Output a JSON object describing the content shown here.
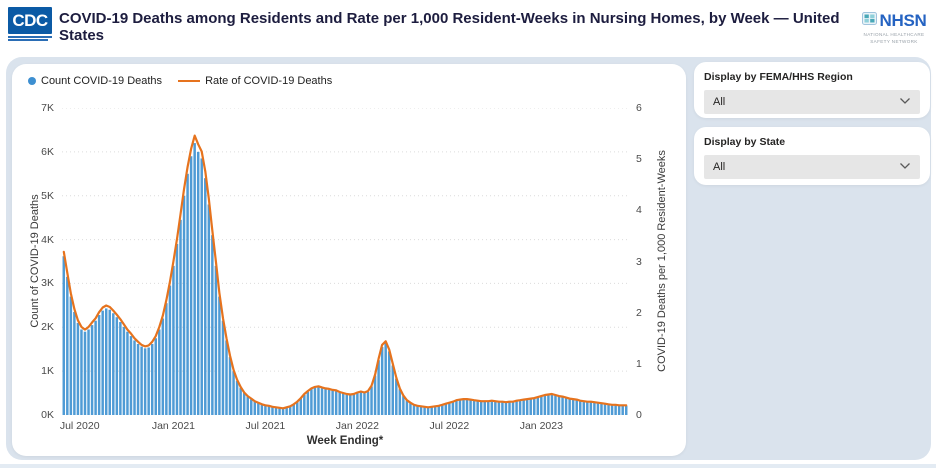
{
  "header": {
    "cdc_logo_text": "CDC",
    "title": "COVID-19 Deaths among Residents and Rate per 1,000 Resident-Weeks in Nursing Homes, by Week — United States",
    "nhsn_logo_text": "NHSN",
    "nhsn_logo_subtext": "NATIONAL HEALTHCARE SAFETY NETWORK"
  },
  "filters": {
    "region": {
      "label": "Display by FEMA/HHS Region",
      "value": "All"
    },
    "state": {
      "label": "Display by State",
      "value": "All"
    }
  },
  "colors": {
    "bar": "#4f9bd5",
    "line": "#e6731e",
    "panel_bg": "#dae3ed",
    "grid": "#dcdcdc",
    "cdc_blue": "#0b5aa5",
    "nhsn_blue": "#2563c2"
  },
  "chart_data": {
    "type": "combo-bar-line",
    "title": "COVID-19 Deaths among Residents and Rate per 1,000 Resident-Weeks in Nursing Homes, by Week — United States",
    "xlabel": "Week Ending*",
    "x_axis": {
      "title": "Week Ending*",
      "unit": "week",
      "ticks": [
        {
          "label": "Jul 2020",
          "week_index": 4.5
        },
        {
          "label": "Jan 2021",
          "week_index": 31
        },
        {
          "label": "Jul 2021",
          "week_index": 57
        },
        {
          "label": "Jan 2022",
          "week_index": 83
        },
        {
          "label": "Jul 2022",
          "week_index": 109
        },
        {
          "label": "Jan 2023",
          "week_index": 135
        }
      ]
    },
    "y_axis_left": {
      "title": "Count of COVID-19 Deaths",
      "ticks": [
        "0K",
        "1K",
        "2K",
        "3K",
        "4K",
        "5K",
        "6K",
        "7K"
      ],
      "min": 0,
      "max": 7000,
      "gridlines": "dotted"
    },
    "y_axis_right": {
      "title": "COVID-19 Deaths per 1,000 Resident-Weeks",
      "ticks": [
        "0",
        "1",
        "2",
        "3",
        "4",
        "5",
        "6"
      ],
      "min": 0,
      "max": 6
    },
    "legend_position": "top-left",
    "series": [
      {
        "name": "Count COVID-19 Deaths",
        "type": "bar",
        "color": "#4f9bd5",
        "axis": "left",
        "values": [
          3620,
          3150,
          2700,
          2350,
          2100,
          1950,
          1900,
          1950,
          2050,
          2150,
          2280,
          2380,
          2430,
          2400,
          2320,
          2230,
          2120,
          2010,
          1900,
          1800,
          1700,
          1620,
          1560,
          1520,
          1540,
          1620,
          1750,
          1950,
          2200,
          2550,
          2950,
          3400,
          3900,
          4450,
          5000,
          5500,
          5900,
          6200,
          6000,
          5850,
          5400,
          4800,
          4100,
          3400,
          2700,
          2150,
          1700,
          1320,
          1000,
          780,
          620,
          500,
          420,
          360,
          310,
          270,
          240,
          220,
          200,
          185,
          170,
          155,
          150,
          165,
          195,
          240,
          300,
          380,
          460,
          530,
          590,
          625,
          630,
          610,
          590,
          575,
          560,
          540,
          515,
          490,
          465,
          450,
          470,
          500,
          520,
          500,
          530,
          650,
          900,
          1250,
          1550,
          1630,
          1450,
          1130,
          830,
          590,
          430,
          330,
          270,
          230,
          205,
          190,
          180,
          175,
          180,
          190,
          205,
          225,
          250,
          275,
          300,
          325,
          345,
          355,
          350,
          340,
          330,
          320,
          310,
          305,
          310,
          320,
          310,
          300,
          290,
          285,
          290,
          300,
          315,
          330,
          345,
          355,
          365,
          380,
          400,
          420,
          440,
          455,
          460,
          445,
          425,
          405,
          385,
          365,
          350,
          335,
          320,
          310,
          300,
          290,
          280,
          270,
          260,
          250,
          240,
          230,
          225,
          220,
          215,
          210
        ]
      },
      {
        "name": "Rate of COVID-19 Deaths",
        "type": "line",
        "color": "#e6731e",
        "axis": "right",
        "values": [
          3.19,
          2.78,
          2.38,
          2.07,
          1.85,
          1.72,
          1.67,
          1.72,
          1.81,
          1.89,
          2.01,
          2.1,
          2.14,
          2.11,
          2.04,
          1.96,
          1.87,
          1.77,
          1.67,
          1.59,
          1.5,
          1.43,
          1.37,
          1.34,
          1.36,
          1.43,
          1.54,
          1.72,
          1.94,
          2.25,
          2.6,
          3.0,
          3.44,
          3.92,
          4.41,
          4.85,
          5.2,
          5.46,
          5.29,
          5.15,
          4.76,
          4.23,
          3.61,
          3.0,
          2.38,
          1.89,
          1.5,
          1.16,
          0.88,
          0.69,
          0.55,
          0.44,
          0.37,
          0.32,
          0.27,
          0.24,
          0.21,
          0.19,
          0.18,
          0.16,
          0.15,
          0.14,
          0.13,
          0.15,
          0.17,
          0.21,
          0.26,
          0.33,
          0.41,
          0.47,
          0.52,
          0.55,
          0.56,
          0.54,
          0.52,
          0.51,
          0.49,
          0.48,
          0.45,
          0.43,
          0.41,
          0.4,
          0.41,
          0.44,
          0.46,
          0.44,
          0.47,
          0.57,
          0.79,
          1.1,
          1.37,
          1.44,
          1.28,
          1.0,
          0.73,
          0.52,
          0.38,
          0.29,
          0.24,
          0.2,
          0.18,
          0.17,
          0.16,
          0.15,
          0.16,
          0.17,
          0.18,
          0.2,
          0.22,
          0.24,
          0.26,
          0.29,
          0.3,
          0.31,
          0.31,
          0.3,
          0.29,
          0.28,
          0.27,
          0.27,
          0.27,
          0.28,
          0.27,
          0.26,
          0.26,
          0.25,
          0.26,
          0.26,
          0.28,
          0.29,
          0.3,
          0.31,
          0.32,
          0.33,
          0.35,
          0.37,
          0.39,
          0.4,
          0.41,
          0.39,
          0.37,
          0.36,
          0.34,
          0.32,
          0.31,
          0.3,
          0.28,
          0.27,
          0.26,
          0.26,
          0.25,
          0.24,
          0.23,
          0.22,
          0.21,
          0.2,
          0.2,
          0.19,
          0.19,
          0.19
        ]
      }
    ]
  }
}
